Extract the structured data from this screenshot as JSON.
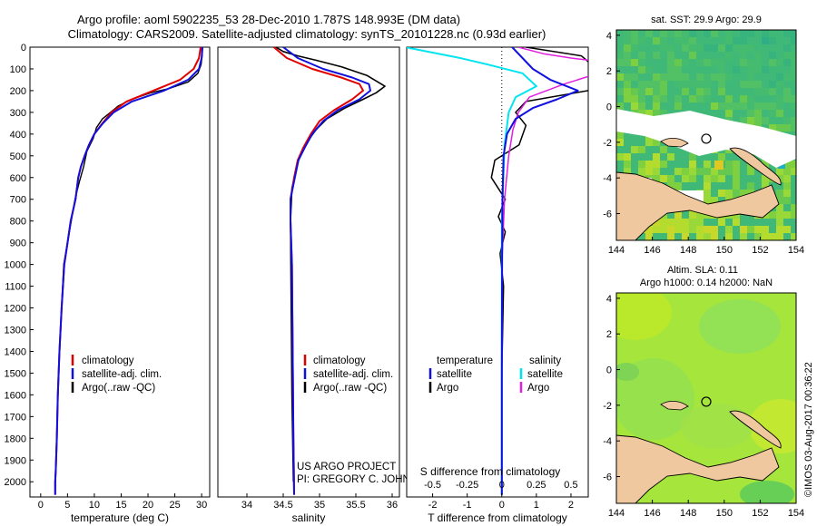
{
  "header": {
    "line1": "Argo profile: aoml 5902235_53 28-Dec-2010 1.787S 148.993E (DM data)",
    "line2": "Climatology: CARS2009. Satellite-adjusted climatology: synTS_20101228.nc (0.93d earlier)"
  },
  "colors": {
    "climatology": "#e00000",
    "satellite": "#1010e0",
    "argo": "#000000",
    "sat_salinity": "#00e5f0",
    "argo_salinity": "#e020e0",
    "land": "#f0c8a0"
  },
  "chart_data": [
    {
      "type": "line",
      "name": "temperature-profile",
      "xlabel": "temperature (deg C)",
      "xlim": [
        -2,
        31.5
      ],
      "xticks": [
        0,
        5,
        10,
        15,
        20,
        25,
        30
      ],
      "ylim": [
        0,
        2070
      ],
      "yticks": [
        0,
        100,
        200,
        300,
        400,
        500,
        600,
        700,
        800,
        900,
        1000,
        1100,
        1200,
        1300,
        1400,
        1500,
        1600,
        1700,
        1800,
        1900,
        2000
      ],
      "legend": [
        "climatology",
        "satellite-adj. clim.",
        "Argo(..raw -QC)"
      ],
      "series": [
        {
          "name": "climatology",
          "x": [
            29.8,
            29.5,
            28.5,
            26,
            21,
            16,
            13.2,
            11.5,
            10,
            9,
            8.2,
            7.5,
            7,
            6.5,
            5.6,
            5,
            4.4,
            3.9,
            3.5,
            3.2,
            3.0,
            2.8,
            2.7,
            2.7
          ],
          "y": [
            0,
            50,
            100,
            150,
            200,
            250,
            300,
            350,
            400,
            450,
            500,
            550,
            600,
            700,
            800,
            900,
            1000,
            1200,
            1400,
            1600,
            1800,
            1950,
            2000,
            2060
          ]
        },
        {
          "name": "satellite",
          "x": [
            30.1,
            30.0,
            29.5,
            27.5,
            23,
            17,
            13.6,
            11.6,
            10,
            9,
            8.2,
            7.5,
            7,
            6.5,
            5.6,
            5,
            4.4,
            3.9,
            3.5,
            3.2,
            3.0,
            2.8,
            2.7,
            2.7
          ],
          "y": [
            0,
            50,
            100,
            150,
            200,
            250,
            300,
            350,
            400,
            450,
            500,
            550,
            600,
            700,
            800,
            900,
            1000,
            1200,
            1400,
            1600,
            1800,
            1950,
            2000,
            2060
          ]
        },
        {
          "name": "argo",
          "x": [
            30.2,
            30.1,
            29.9,
            29.3,
            27.5,
            24,
            20.5,
            17,
            14.5,
            13,
            11.5,
            10.4,
            9.8,
            8.6,
            8.0,
            7.2,
            6.4,
            5.7,
            5.0,
            4.3,
            3.9,
            3.5,
            3.1,
            2.8,
            2.7
          ],
          "y": [
            0,
            40,
            80,
            120,
            160,
            190,
            210,
            240,
            270,
            300,
            330,
            370,
            420,
            480,
            550,
            620,
            700,
            800,
            900,
            1000,
            1200,
            1400,
            1700,
            1950,
            2050
          ]
        }
      ]
    },
    {
      "type": "line",
      "name": "salinity-profile",
      "xlabel": "salinity",
      "xlim": [
        33.6,
        36.1
      ],
      "xticks": [
        34,
        34.5,
        35,
        35.5,
        36
      ],
      "ylim": [
        0,
        2070
      ],
      "legend": [
        "climatology",
        "satellite-adj. clim.",
        "Argo(..raw -QC)"
      ],
      "annotation": [
        "US ARGO PROJECT",
        "PI: GREGORY C. JOHNSON"
      ],
      "series": [
        {
          "name": "climatology",
          "x": [
            34.37,
            34.55,
            34.9,
            35.3,
            35.55,
            35.6,
            35.45,
            35.2,
            35.0,
            34.88,
            34.78,
            34.7,
            34.65,
            34.6,
            34.6,
            34.62,
            34.63,
            34.64,
            34.65
          ],
          "y": [
            0,
            50,
            100,
            140,
            170,
            200,
            240,
            290,
            340,
            400,
            460,
            520,
            600,
            700,
            800,
            1000,
            1400,
            1800,
            2060
          ]
        },
        {
          "name": "satellite",
          "x": [
            34.5,
            34.7,
            35.05,
            35.45,
            35.68,
            35.7,
            35.55,
            35.25,
            35.05,
            34.9,
            34.8,
            34.71,
            34.66,
            34.6,
            34.6,
            34.62,
            34.63,
            34.64,
            34.65
          ],
          "y": [
            0,
            50,
            100,
            140,
            170,
            200,
            240,
            290,
            340,
            400,
            460,
            520,
            600,
            700,
            800,
            1000,
            1400,
            1800,
            2060
          ]
        },
        {
          "name": "argo",
          "x": [
            34.4,
            34.5,
            34.7,
            34.95,
            35.3,
            35.65,
            35.9,
            35.78,
            35.6,
            35.35,
            35.1,
            34.95,
            34.8,
            34.7,
            34.62,
            34.6,
            34.61,
            34.62,
            34.64
          ],
          "y": [
            0,
            20,
            40,
            60,
            90,
            130,
            180,
            210,
            240,
            280,
            330,
            380,
            450,
            530,
            650,
            800,
            1200,
            1600,
            2000
          ]
        }
      ]
    },
    {
      "type": "line",
      "name": "difference-profile",
      "xlabel": "T difference from climatology",
      "xlabel_top": "S difference from climatology",
      "xlim": [
        -2.75,
        2.5
      ],
      "xticks_T": [
        -2,
        -1,
        0,
        1,
        2
      ],
      "xticks_S": [
        -0.5,
        -0.25,
        0,
        0.25,
        0.5
      ],
      "ylim": [
        0,
        2070
      ],
      "legend_titles": [
        "temperature",
        "salinity"
      ],
      "legend": [
        "satellite",
        "Argo",
        "satellite",
        "Argo"
      ],
      "series": [
        {
          "name": "temperature-satellite",
          "x": [
            0.3,
            0.6,
            0.9,
            1.4,
            2.2,
            1.6,
            0.9,
            0.4,
            0.15,
            0.05,
            0.02,
            0.01,
            0.0,
            0.0
          ],
          "y": [
            0,
            50,
            100,
            150,
            200,
            240,
            280,
            330,
            400,
            500,
            700,
            1000,
            1500,
            2060
          ]
        },
        {
          "name": "temperature-argo",
          "x": [
            0.7,
            2.3,
            2.6,
            3.0,
            2.5,
            0.7,
            0.4,
            0.7,
            0.5,
            -0.2,
            -0.3,
            0.1,
            -0.1,
            0.1,
            -0.05,
            0.05,
            0.0,
            0.0
          ],
          "y": [
            0,
            40,
            80,
            120,
            200,
            250,
            300,
            360,
            450,
            520,
            600,
            700,
            780,
            850,
            950,
            1100,
            1500,
            2060
          ]
        },
        {
          "name": "salinity-satellite",
          "x": [
            -0.7,
            -0.3,
            -0.1,
            0.15,
            0.25,
            0.1,
            0.05,
            0.02,
            0.0,
            0.0
          ],
          "y": [
            0,
            50,
            80,
            120,
            180,
            230,
            300,
            450,
            800,
            2060
          ]
        },
        {
          "name": "salinity-argo",
          "x": [
            0.12,
            0.3,
            0.5,
            0.9,
            0.75,
            0.45,
            0.2,
            0.12,
            0.08,
            0.05,
            0.02,
            0.0,
            0.0
          ],
          "y": [
            0,
            30,
            50,
            80,
            110,
            170,
            230,
            300,
            380,
            500,
            700,
            1000,
            2060
          ]
        }
      ]
    },
    {
      "type": "heatmap",
      "name": "sst-map",
      "title": "sat. SST: 29.9 Argo: 29.9",
      "xlim": [
        144,
        154
      ],
      "ylim": [
        -7.5,
        4.3
      ],
      "xticks": [
        144,
        146,
        148,
        150,
        152,
        154
      ],
      "yticks": [
        4,
        2,
        0,
        -2,
        -4,
        -6
      ],
      "argo_position": [
        149.0,
        -1.8
      ]
    },
    {
      "type": "heatmap",
      "name": "sla-map",
      "title": [
        "Altim. SLA: 0.11",
        "Argo h1000: 0.14 h2000: NaN"
      ],
      "xlim": [
        144,
        154
      ],
      "ylim": [
        -7.5,
        4.3
      ],
      "xticks": [
        144,
        146,
        148,
        150,
        152,
        154
      ],
      "yticks": [
        4,
        2,
        0,
        -2,
        -4,
        -6
      ],
      "argo_position": [
        149.0,
        -1.8
      ]
    }
  ],
  "credit": "©IMOS 03-Aug-2017 00:36:22"
}
